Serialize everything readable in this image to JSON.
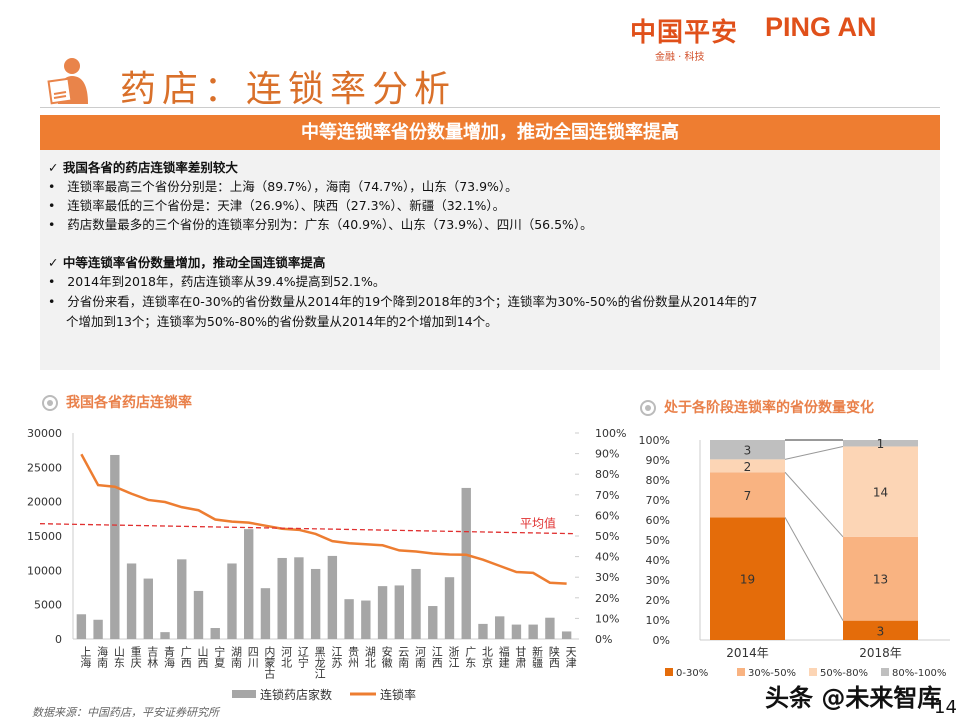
{
  "header": {
    "logo_cn": "中国平安",
    "logo_en": "PING AN",
    "logo_sub": "金融 · 科技",
    "title": "药店：连锁率分析",
    "icon": "jobs-person-icon"
  },
  "banner": "中等连锁率省份数量增加，推动全国连锁率提高",
  "body": {
    "section1": {
      "heading": "✓ 我国各省的药店连锁率差别较大",
      "bullets": [
        "连锁率最高三个省份分别是：上海（89.7%），海南（74.7%），山东（73.9%）。",
        "连锁率最低的三个省份是：天津（26.9%）、陕西（27.3%）、新疆（32.1%）。",
        "药店数量最多的三个省份的连锁率分别为：广东（40.9%）、山东（73.9%）、四川（56.5%）。"
      ]
    },
    "section2": {
      "heading": "✓ 中等连锁率省份数量增加，推动全国连锁率提高",
      "bullets": [
        "2014年到2018年，药店连锁率从39.4%提高到52.1%。",
        "分省份来看，连锁率在0-30%的省份数量从2014年的19个降到2018年的3个；连锁率为30%-50%的省份数量从2014年的7",
        "个增加到13个；连锁率为50%-80%的省份数量从2014年的2个增加到14个。"
      ]
    }
  },
  "left_section_title": "我国各省药店连锁率",
  "right_section_title": "处于各阶段连锁率的省份数量变化",
  "source": "数据来源：中国药店，平安证券研究所",
  "watermark": "头条 @未来智库",
  "page_number": "14",
  "chart_data": [
    {
      "type": "bar+line",
      "categories": [
        "上海",
        "海南",
        "山东",
        "重庆",
        "吉林",
        "青海",
        "广西",
        "山西",
        "宁夏",
        "湖南",
        "四川",
        "内蒙古",
        "河北",
        "辽宁",
        "黑龙江",
        "江苏",
        "贵州",
        "湖北",
        "安徽",
        "云南",
        "河南",
        "江西",
        "浙江",
        "广东",
        "北京",
        "福建",
        "甘肃",
        "新疆",
        "陕西",
        "天津"
      ],
      "series": [
        {
          "name": "连锁药店家数",
          "type": "bar",
          "axis": "left",
          "color": "#a6a6a6",
          "values": [
            3600,
            2800,
            26800,
            11000,
            8800,
            1000,
            11600,
            7000,
            1600,
            11000,
            16000,
            7400,
            11800,
            11900,
            10200,
            12100,
            5800,
            5600,
            7700,
            7800,
            10200,
            4800,
            9000,
            22000,
            2200,
            3300,
            2100,
            2100,
            3100,
            1100
          ]
        },
        {
          "name": "连锁率",
          "type": "line",
          "axis": "right",
          "color": "#ed7d31",
          "values": [
            89.7,
            74.7,
            73.9,
            70.5,
            67.5,
            66.5,
            64,
            62.5,
            58,
            57,
            56.5,
            55,
            53.5,
            53,
            51,
            47.5,
            46.5,
            46,
            45.5,
            43,
            42.5,
            41.5,
            41,
            40.9,
            38.5,
            35.5,
            32.5,
            32.1,
            27.3,
            26.9
          ]
        }
      ],
      "reference_line": {
        "label": "平均值",
        "value": 52.1,
        "color": "#e03030"
      },
      "ylim_left": [
        0,
        30000
      ],
      "yticks_left": [
        "0",
        "5000",
        "10000",
        "15000",
        "20000",
        "25000",
        "30000"
      ],
      "ylim_right": [
        0,
        100
      ],
      "yticks_right": [
        "0%",
        "10%",
        "20%",
        "30%",
        "40%",
        "50%",
        "60%",
        "70%",
        "80%",
        "90%",
        "100%"
      ],
      "legend": "bottom"
    },
    {
      "type": "stacked-bar-100",
      "categories": [
        "2014年",
        "2018年"
      ],
      "series": [
        {
          "name": "0-30%",
          "color": "#e46c0a",
          "values": [
            19,
            3
          ]
        },
        {
          "name": "30%-50%",
          "color": "#f9b381",
          "values": [
            7,
            13
          ]
        },
        {
          "name": "50%-80%",
          "color": "#fcd5b5",
          "values": [
            2,
            14
          ]
        },
        {
          "name": "80%-100%",
          "color": "#bfbfbf",
          "values": [
            3,
            1
          ]
        }
      ],
      "yticks": [
        "0%",
        "10%",
        "20%",
        "30%",
        "40%",
        "50%",
        "60%",
        "70%",
        "80%",
        "90%",
        "100%"
      ],
      "legend": "bottom"
    }
  ]
}
